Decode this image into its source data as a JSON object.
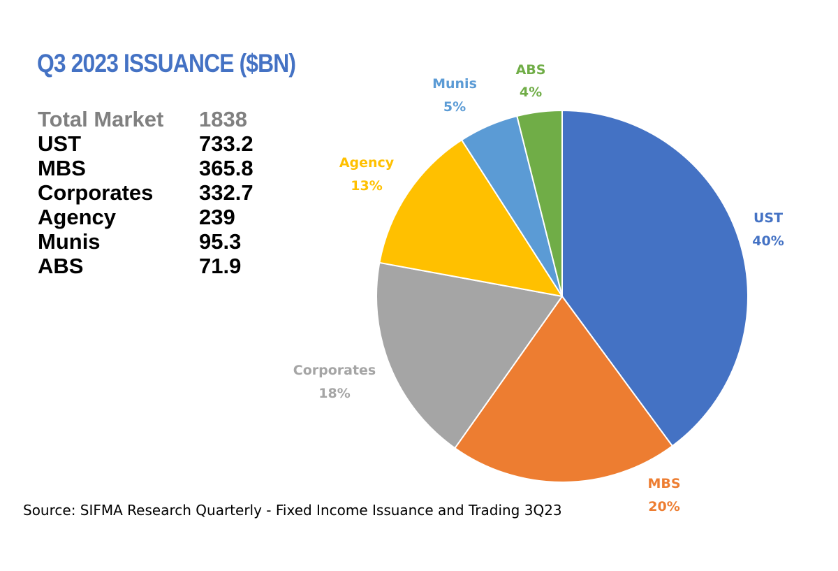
{
  "title": "Q3 2023 ISSUANCE ($BN)",
  "summary": {
    "total": {
      "label": "Total Market",
      "value": "1838"
    },
    "items": [
      {
        "label": "UST",
        "value": "733.2"
      },
      {
        "label": "MBS",
        "value": "365.8"
      },
      {
        "label": "Corporates",
        "value": "332.7"
      },
      {
        "label": "Agency",
        "value": "239"
      },
      {
        "label": "Munis",
        "value": "95.3"
      },
      {
        "label": "ABS",
        "value": "71.9"
      }
    ]
  },
  "source": "Source: SIFMA Research Quarterly - Fixed Income Issuance and Trading 3Q23",
  "chart_data": {
    "type": "pie",
    "title": "Q3 2023 ISSUANCE ($BN)",
    "slices": [
      {
        "label": "UST",
        "value": 733.2,
        "percent_label": "40%",
        "color": "#4472C4"
      },
      {
        "label": "MBS",
        "value": 365.8,
        "percent_label": "20%",
        "color": "#ED7D31"
      },
      {
        "label": "Corporates",
        "value": 332.7,
        "percent_label": "18%",
        "color": "#A5A5A5"
      },
      {
        "label": "Agency",
        "value": 239,
        "percent_label": "13%",
        "color": "#FFC000"
      },
      {
        "label": "Munis",
        "value": 95.3,
        "percent_label": "5%",
        "color": "#5B9BD5"
      },
      {
        "label": "ABS",
        "value": 71.9,
        "percent_label": "4%",
        "color": "#70AD47"
      }
    ],
    "start_angle": "12 o'clock",
    "direction": "clockwise",
    "legend": "none"
  }
}
